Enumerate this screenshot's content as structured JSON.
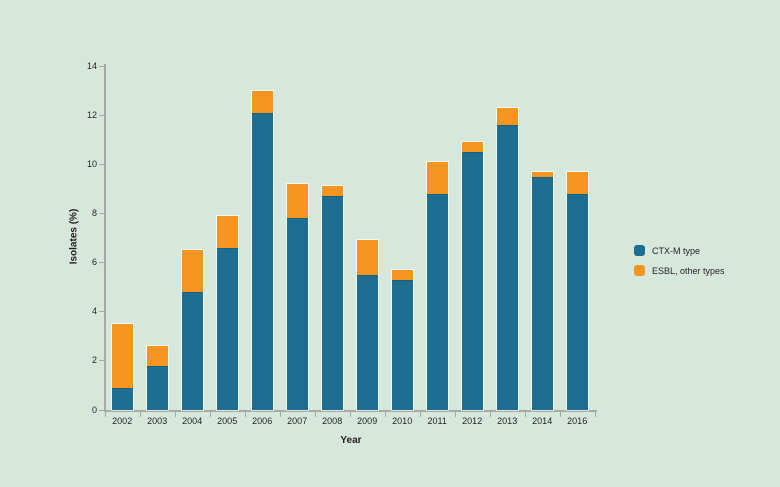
{
  "chart_data": {
    "type": "bar",
    "stacked": true,
    "title": "",
    "xlabel": "Year",
    "ylabel": "Isolates (%)",
    "ylim": [
      0,
      14
    ],
    "yticks": [
      0,
      2,
      4,
      6,
      8,
      10,
      12,
      14
    ],
    "grid": false,
    "legend_position": "right",
    "categories": [
      "2002",
      "2003",
      "2004",
      "2005",
      "2006",
      "2007",
      "2008",
      "2009",
      "2010",
      "2011",
      "2012",
      "2013",
      "2014",
      "2016"
    ],
    "series": [
      {
        "name": "CTX-M type",
        "color": "#1e6e92",
        "values": [
          0.9,
          1.8,
          4.8,
          6.6,
          12.1,
          7.8,
          8.7,
          5.5,
          5.3,
          8.8,
          10.5,
          11.6,
          9.5,
          8.8
        ]
      },
      {
        "name": "ESBL, other types",
        "color": "#f89420",
        "values": [
          2.6,
          0.8,
          1.7,
          1.3,
          0.9,
          1.4,
          0.4,
          1.4,
          0.4,
          1.3,
          0.4,
          0.7,
          0.2,
          0.9
        ]
      }
    ],
    "colors": {
      "background": "#d6e8dc",
      "axis": "#a5aaa7",
      "text": "#231f20"
    }
  }
}
